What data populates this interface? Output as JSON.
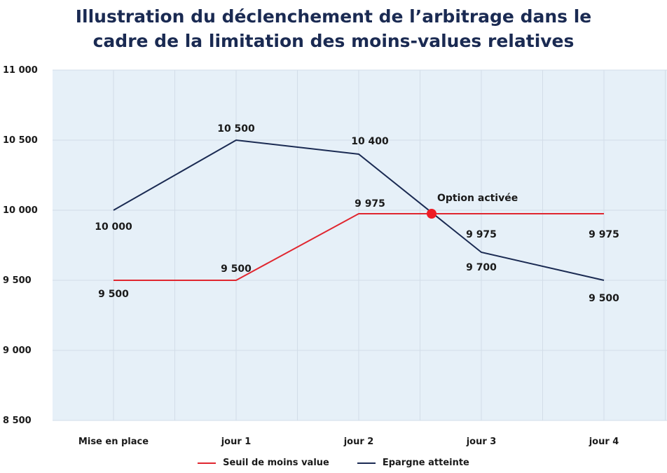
{
  "colors": {
    "plot_bg": "#e6f0f8",
    "seuil": "#e0262f",
    "epargne": "#1a2a52",
    "marker": "#ee1c25"
  },
  "chart_data": {
    "type": "line",
    "title_lines": [
      "Illustration du déclenchement de l’arbitrage dans le",
      "cadre de la limitation des moins-values relatives"
    ],
    "categories": [
      "Mise en place",
      "jour 1",
      "jour 2",
      "jour 3",
      "jour 4"
    ],
    "ylim": [
      8500,
      11000
    ],
    "yticks": [
      8500,
      9000,
      9500,
      10000,
      10500,
      11000
    ],
    "ytick_labels": [
      "8 500",
      "9 000",
      "9 500",
      "10 000",
      "10 500",
      "11 000"
    ],
    "grid": true,
    "legend_position": "bottom",
    "series": [
      {
        "name": "Seuil de moins value",
        "values": [
          9500,
          9500,
          9975,
          9975,
          9975
        ],
        "labels": [
          "9 500",
          "9 500",
          "9 975",
          "9 975",
          "9 975"
        ]
      },
      {
        "name": "Epargne atteinte",
        "values": [
          10000,
          10500,
          10400,
          9700,
          9500
        ],
        "labels": [
          "10 000",
          "10 500",
          "10 400",
          "9 700",
          "9 500"
        ]
      }
    ],
    "annotation": {
      "text": "Option activée",
      "x_position": 2.6,
      "y": 9975
    }
  }
}
